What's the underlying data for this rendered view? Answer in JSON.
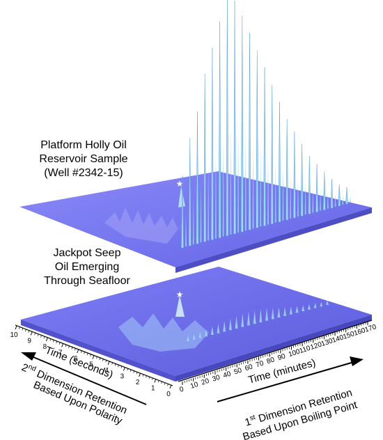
{
  "chart_data": [
    {
      "type": "3d-surface",
      "label_lines": [
        "Platform Holly Oil",
        "Reservoir Sample",
        "(Well #2342-15)"
      ],
      "peak_marker": "★",
      "peak_profile": {
        "time_minutes": [
          60,
          65,
          70,
          75,
          80,
          85,
          90,
          95,
          100,
          105,
          110,
          115,
          120,
          125,
          130,
          135,
          140,
          145,
          150,
          155,
          160,
          165,
          170
        ],
        "relative_height": [
          0.3,
          0.45,
          0.55,
          0.7,
          0.8,
          0.9,
          1.0,
          0.97,
          0.9,
          0.82,
          0.74,
          0.66,
          0.58,
          0.5,
          0.42,
          0.36,
          0.3,
          0.24,
          0.2,
          0.16,
          0.12,
          0.09,
          0.07
        ]
      }
    },
    {
      "type": "3d-surface",
      "label_lines": [
        "Jackpot Seep",
        "Oil Emerging",
        "Through Seafloor"
      ],
      "peak_marker": "★"
    }
  ],
  "axes": {
    "time_seconds": {
      "label": "Time (seconds)",
      "ticks": [
        "10",
        "9",
        "8",
        "7",
        "6",
        "5",
        "4",
        "3",
        "2",
        "1",
        "0"
      ],
      "range": [
        0,
        10
      ]
    },
    "time_minutes": {
      "label": "Time (minutes)",
      "ticks": [
        "0",
        "10",
        "20",
        "30",
        "40",
        "50",
        "60",
        "70",
        "80",
        "90",
        "100",
        "110",
        "120",
        "130",
        "140",
        "150",
        "160",
        "170"
      ],
      "range": [
        0,
        170
      ]
    },
    "second_dimension": {
      "line1_prefix": "2",
      "line1_sup": "nd",
      "line1_rest": " Dimension Retention",
      "line2": "Based Upon Polarity"
    },
    "first_dimension": {
      "line1_prefix": "1",
      "line1_sup": "st",
      "line1_rest": " Dimension Retention",
      "line2": "Based Upon Boiling Point"
    }
  },
  "colors": {
    "surface": "#6f6ff2",
    "surface_edge": "#4b4bc8",
    "peak": "#9fd8f2",
    "peak_dark": "#5aa0e8"
  }
}
